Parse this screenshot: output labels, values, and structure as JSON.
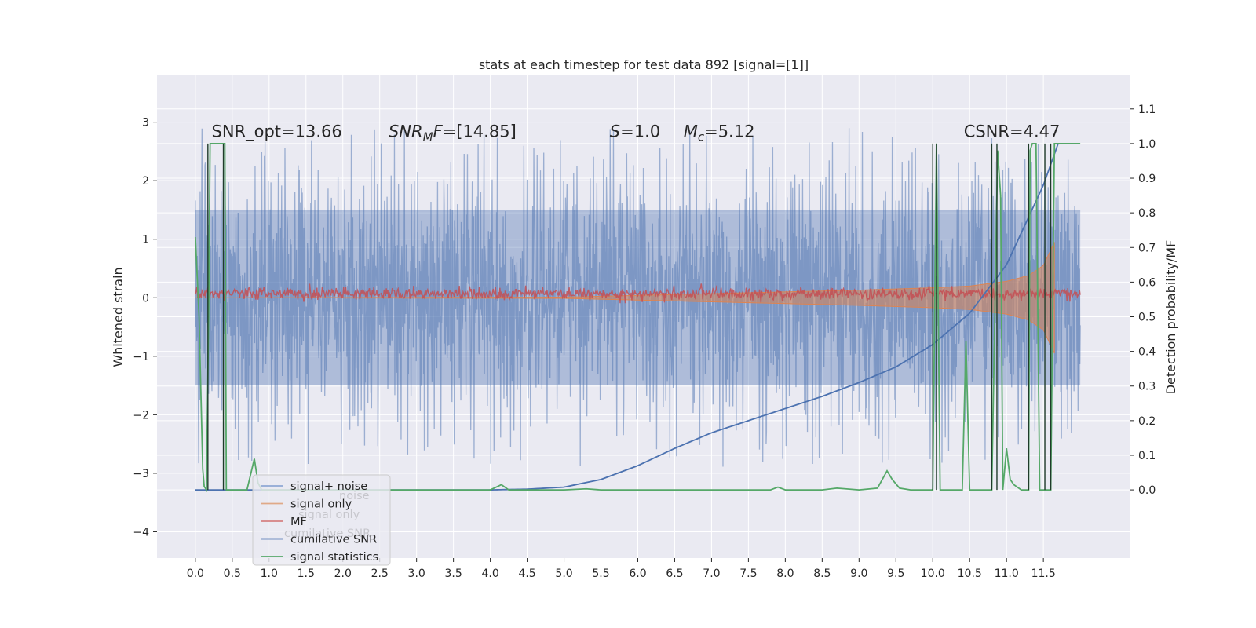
{
  "chart_data": {
    "type": "line",
    "title": "stats at each timestep for test data 892 [signal=[1]]",
    "ylabel": "Whitened strain",
    "y2label": "Detection probability/MF",
    "xlim": [
      -0.52,
      12.68
    ],
    "ylim": [
      -4.45,
      3.8
    ],
    "y2lim": [
      -0.197,
      1.197
    ],
    "x_ticks": [
      0.0,
      0.5,
      1.0,
      1.5,
      2.0,
      2.5,
      3.0,
      3.5,
      4.0,
      4.5,
      5.0,
      5.5,
      6.0,
      6.5,
      7.0,
      7.5,
      8.0,
      8.5,
      9.0,
      9.5,
      10.0,
      10.5,
      11.0,
      11.5
    ],
    "x_tick_labels": [
      "0.0",
      "0.5",
      "1.0",
      "1.5",
      "2.0",
      "2.5",
      "3.0",
      "3.5",
      "4.0",
      "4.5",
      "5.0",
      "5.5",
      "6.0",
      "6.5",
      "7.0",
      "7.5",
      "8.0",
      "8.5",
      "9.0",
      "9.5",
      "10.0",
      "10.5",
      "11.0",
      "11.5"
    ],
    "y_ticks": [
      -4,
      -3,
      -2,
      -1,
      0,
      1,
      2,
      3
    ],
    "y_tick_labels": [
      "−4",
      "−3",
      "−2",
      "−1",
      "0",
      "1",
      "2",
      "3"
    ],
    "y2_ticks": [
      0.0,
      0.1,
      0.2,
      0.3,
      0.4,
      0.5,
      0.6,
      0.7,
      0.8,
      0.9,
      1.0,
      1.1
    ],
    "y2_tick_labels": [
      "0.0",
      "0.1",
      "0.2",
      "0.3",
      "0.4",
      "0.5",
      "0.6",
      "0.7",
      "0.8",
      "0.9",
      "1.0",
      "1.1"
    ],
    "grid": true,
    "legend_position": "bottom-left",
    "annotations": [
      {
        "label": "SNR_opt=13.66",
        "x": 0.22,
        "y": 2.75
      },
      {
        "label": "SNR_MF=[14.85]",
        "x": 2.62,
        "y": 2.75
      },
      {
        "label": "S=1.0",
        "x": 5.62,
        "y": 2.75
      },
      {
        "label": "M_c=5.12",
        "x": 6.62,
        "y": 2.75
      },
      {
        "label": "CSNR=4.47",
        "x": 10.42,
        "y": 2.75
      }
    ],
    "colors": {
      "background": "#eaeaf2",
      "grid": "#ffffff",
      "noise": "#4c72b0",
      "signal_only": "#dd8452",
      "mf": "#c44e52",
      "cumulative_snr": "#4c72b0",
      "signal_statistics": "#55a868",
      "dark_lines": "#1f3b2a"
    },
    "series": [
      {
        "name": "signal+ noise",
        "axis": "left",
        "x_range": [
          0,
          12.0
        ],
        "envelope_upper_approx": 1.5,
        "envelope_lower_approx": -1.5,
        "peak_max": 3.48,
        "peak_min": -4.07
      },
      {
        "name": "signal only",
        "axis": "left",
        "x": [
          0,
          5.0,
          6.0,
          7.0,
          8.0,
          9.0,
          10.0,
          10.5,
          11.0,
          11.3,
          11.5,
          11.65
        ],
        "amplitude": [
          0.0,
          0.01,
          0.04,
          0.07,
          0.1,
          0.13,
          0.17,
          0.2,
          0.28,
          0.38,
          0.55,
          0.95
        ]
      },
      {
        "name": "MF",
        "axis": "left",
        "x_range": [
          0,
          12.0
        ],
        "center": 0.07,
        "amplitude": 0.1
      },
      {
        "name": "cumilative SNR",
        "axis": "right",
        "x": [
          0.0,
          4.0,
          4.5,
          5.0,
          5.5,
          6.0,
          6.5,
          7.0,
          7.5,
          8.0,
          8.5,
          9.0,
          9.5,
          10.0,
          10.5,
          11.0,
          11.5,
          11.7
        ],
        "y": [
          0.0,
          0.0,
          0.002,
          0.008,
          0.03,
          0.07,
          0.12,
          0.165,
          0.2,
          0.235,
          0.27,
          0.31,
          0.355,
          0.42,
          0.51,
          0.65,
          0.88,
          1.0
        ]
      },
      {
        "name": "signal statistics",
        "axis": "right",
        "x": [
          0.0,
          0.05,
          0.1,
          0.12,
          0.15,
          0.18,
          0.2,
          0.25,
          0.3,
          0.35,
          0.4,
          0.42,
          0.45,
          0.5,
          0.7,
          0.8,
          0.85,
          0.9,
          1.0,
          2.0,
          3.0,
          4.0,
          4.15,
          4.25,
          4.4,
          5.0,
          5.3,
          5.5,
          6.0,
          7.0,
          7.8,
          7.9,
          8.0,
          8.5,
          8.7,
          9.0,
          9.25,
          9.38,
          9.45,
          9.55,
          9.7,
          9.85,
          10.0,
          10.05,
          10.1,
          10.15,
          10.4,
          10.45,
          10.5,
          10.55,
          10.6,
          10.8,
          10.88,
          10.92,
          10.95,
          11.0,
          11.05,
          11.1,
          11.2,
          11.3,
          11.32,
          11.35,
          11.4,
          11.45,
          11.5,
          11.55,
          11.6,
          11.65,
          11.7,
          12.0
        ],
        "y": [
          0.73,
          0.5,
          0.06,
          0.01,
          0.0,
          0.5,
          1.0,
          1.0,
          1.0,
          1.0,
          1.0,
          0.0,
          0.0,
          0.0,
          0.0,
          0.09,
          0.02,
          0.0,
          0.0,
          0.0,
          0.0,
          0.0,
          0.015,
          0.0,
          0.0,
          0.0,
          0.003,
          0.0,
          0.0,
          0.0,
          0.0,
          0.008,
          0.0,
          0.0,
          0.005,
          0.0,
          0.005,
          0.055,
          0.03,
          0.005,
          0.0,
          0.0,
          0.0,
          1.0,
          0.0,
          0.0,
          0.0,
          0.43,
          0.0,
          0.0,
          0.0,
          0.0,
          0.98,
          0.85,
          0.0,
          0.12,
          0.03,
          0.015,
          0.0,
          0.0,
          0.98,
          1.0,
          1.0,
          0.0,
          0.0,
          0.0,
          0.0,
          1.0,
          1.0,
          1.0
        ]
      },
      {
        "name": "",
        "axis": "right",
        "role": "dark vertical segments",
        "x": [
          0.17,
          0.38,
          10.0,
          10.05,
          10.8,
          10.87,
          11.3,
          11.52,
          11.6
        ],
        "y": [
          1.0,
          1.0,
          1.0,
          1.0,
          1.0,
          1.0,
          1.0,
          1.0,
          1.0
        ]
      }
    ],
    "legend": [
      {
        "label": "signal+ noise",
        "color": "#8fa8d4"
      },
      {
        "label": "signal only",
        "color": "#e0a988"
      },
      {
        "label": "MF",
        "color": "#d68082"
      },
      {
        "label": "cumilative SNR",
        "color": "#4c72b0"
      },
      {
        "label": "signal statistics",
        "color": "#55a868"
      }
    ],
    "legend_ghost_labels": [
      "noise",
      "signal only",
      "cumilative SNR"
    ]
  }
}
